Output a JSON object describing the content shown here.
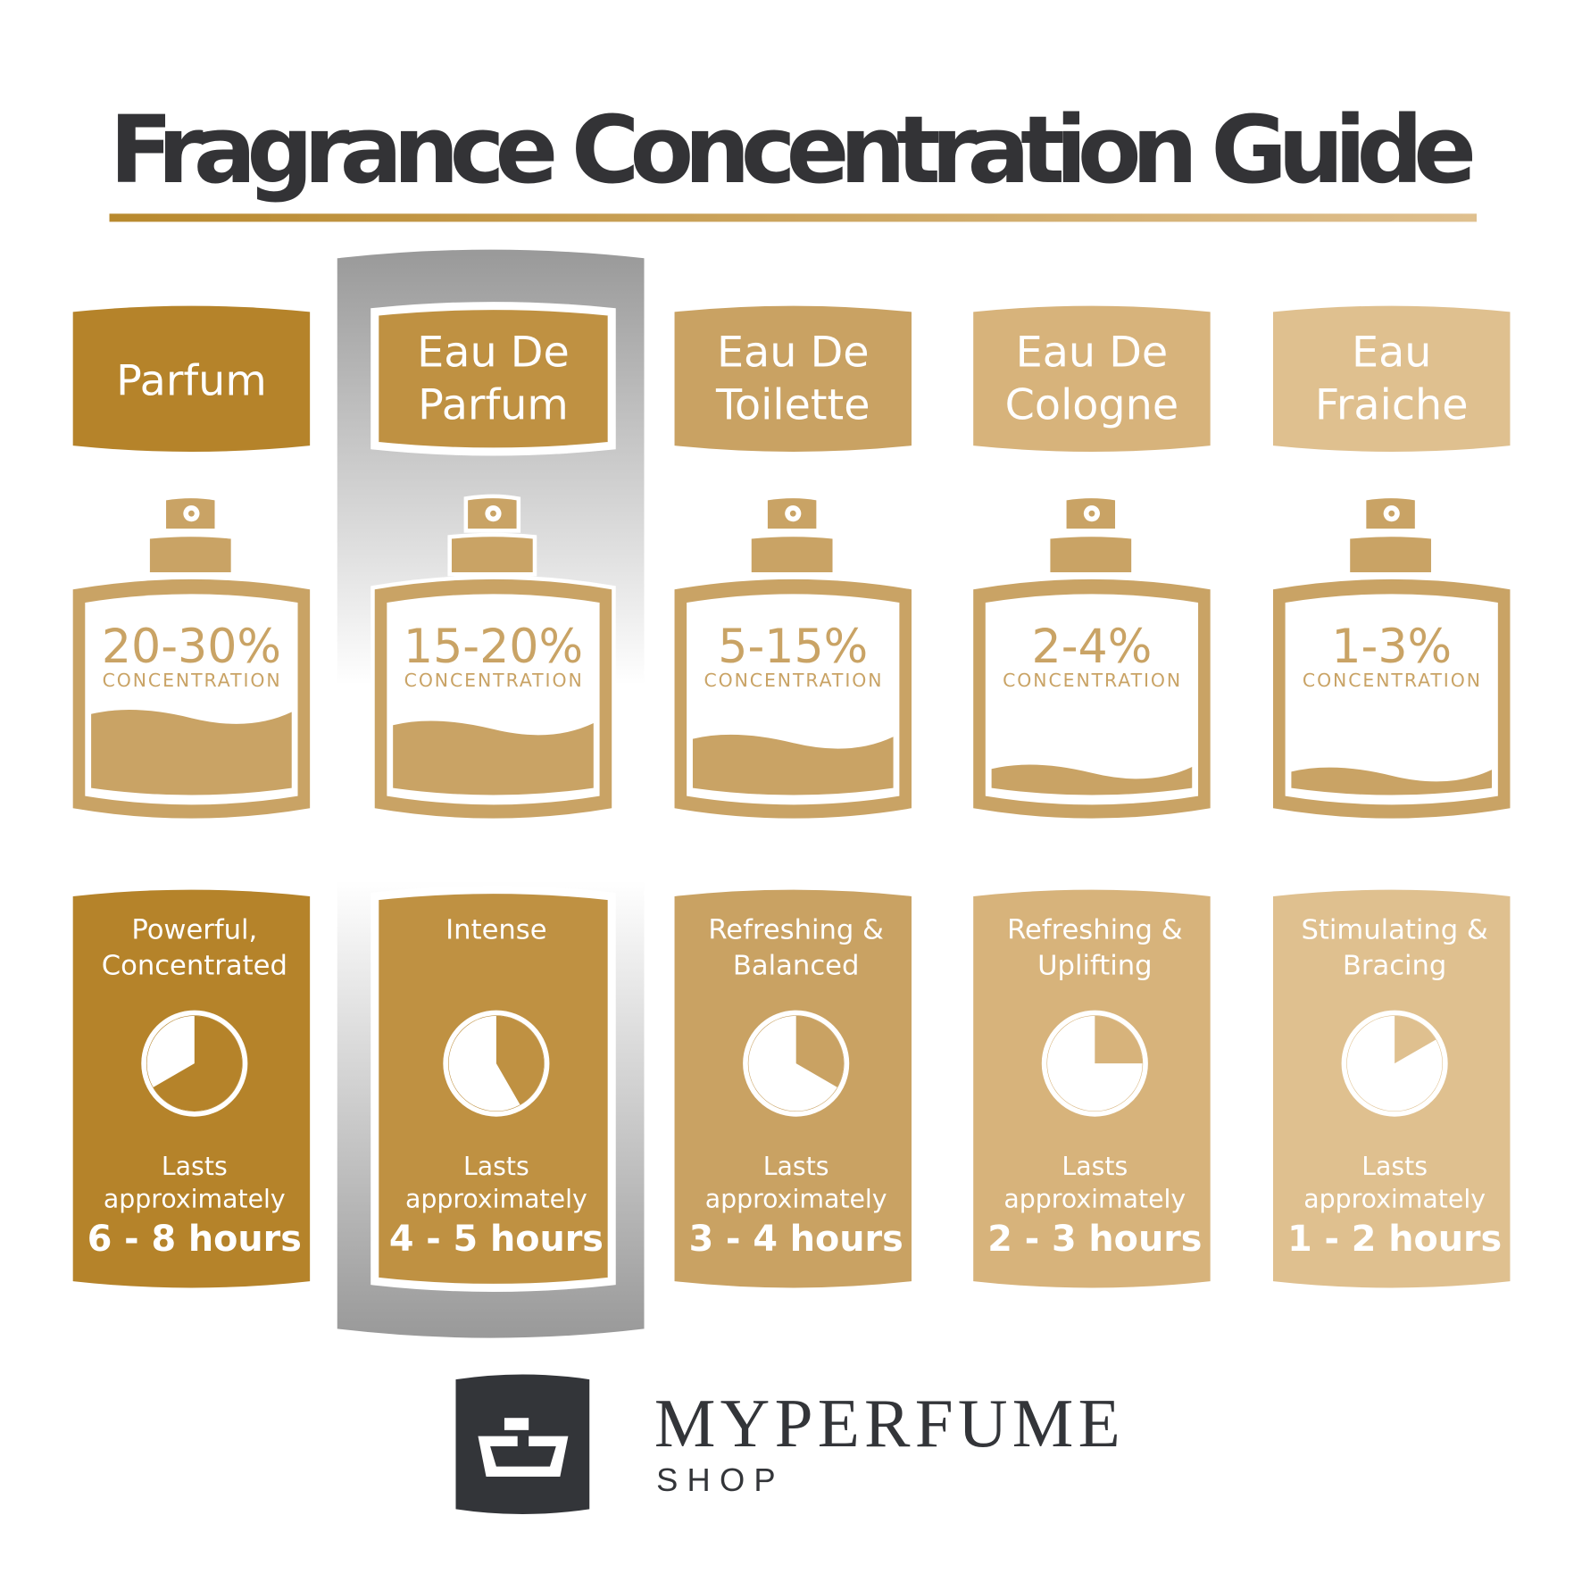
{
  "title": "Fragrance Concentration Guide",
  "colors": {
    "title": "#333336",
    "bottle": "#c9a365",
    "underline_start": "#b8892e",
    "underline_end": "#dfc08f",
    "highlight": "#999999",
    "logo": "#333539"
  },
  "highlighted_column": 1,
  "columns": [
    {
      "name_lines": [
        "Parfum"
      ],
      "color": "#b5832a",
      "concentration": "20-30%",
      "concentration_label": "CONCENTRATION",
      "fill_level": 0.3,
      "description_lines": [
        "Powerful,",
        "Concentrated"
      ],
      "duration_fraction": 0.6667,
      "lasts_label": "Lasts",
      "approx_label": "approximately",
      "hours": "6 - 8 hours",
      "icon": "clock-pie-icon"
    },
    {
      "name_lines": [
        "Eau De",
        "Parfum"
      ],
      "color": "#bf9142",
      "concentration": "15-20%",
      "concentration_label": "CONCENTRATION",
      "fill_level": 0.2,
      "description_lines": [
        "Intense"
      ],
      "duration_fraction": 0.4167,
      "lasts_label": "Lasts",
      "approx_label": "approximately",
      "hours": "4 - 5 hours",
      "icon": "clock-pie-icon"
    },
    {
      "name_lines": [
        "Eau De",
        "Toilette"
      ],
      "color": "#c9a263",
      "concentration": "5-15%",
      "concentration_label": "CONCENTRATION",
      "fill_level": 0.15,
      "description_lines": [
        "Refreshing &",
        "Balanced"
      ],
      "duration_fraction": 0.3333,
      "lasts_label": "Lasts",
      "approx_label": "approximately",
      "hours": "3 - 4 hours",
      "icon": "clock-pie-icon"
    },
    {
      "name_lines": [
        "Eau De",
        "Cologne"
      ],
      "color": "#d7b37b",
      "concentration": "2-4%",
      "concentration_label": "CONCENTRATION",
      "fill_level": 0.04,
      "description_lines": [
        "Refreshing &",
        "Uplifting"
      ],
      "duration_fraction": 0.25,
      "lasts_label": "Lasts",
      "approx_label": "approximately",
      "hours": "2 - 3 hours",
      "icon": "clock-pie-icon"
    },
    {
      "name_lines": [
        "Eau",
        "Fraiche"
      ],
      "color": "#dfc08f",
      "concentration": "1-3%",
      "concentration_label": "CONCENTRATION",
      "fill_level": 0.03,
      "description_lines": [
        "Stimulating &",
        "Bracing"
      ],
      "duration_fraction": 0.1667,
      "lasts_label": "Lasts",
      "approx_label": "approximately",
      "hours": "1 - 2 hours",
      "icon": "clock-pie-icon"
    }
  ],
  "logo": {
    "brand": "MYPERFUME",
    "sub": "SHOP",
    "icon": "perfume-bottle-logo-icon"
  }
}
